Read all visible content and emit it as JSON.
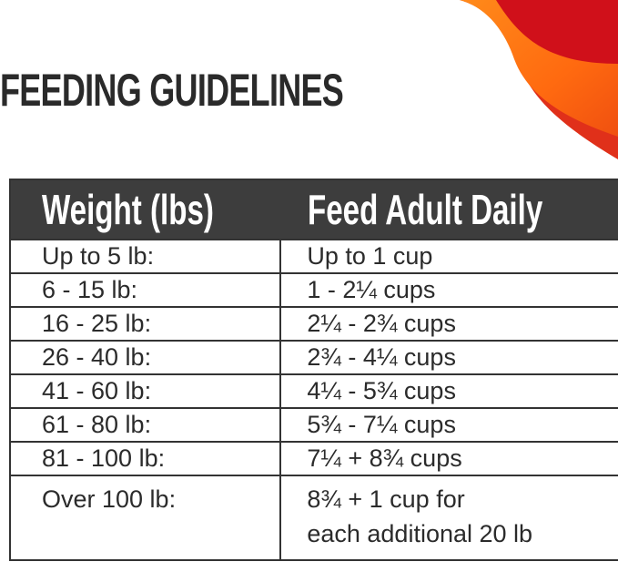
{
  "title": "FEEDING GUIDELINES",
  "colors": {
    "header_bg": "#3d3d3d",
    "swoosh_red": "#d0101a",
    "swoosh_orange": "#ff6a10"
  },
  "table": {
    "headers": [
      "Weight (lbs)",
      "Feed Adult Daily"
    ],
    "rows": [
      {
        "weight": "Up to 5 lb:",
        "amount": "Up to 1 cup"
      },
      {
        "weight": "6 - 15 lb:",
        "amount": "1 - 2¼ cups"
      },
      {
        "weight": "16 - 25 lb:",
        "amount": "2¼ - 2¾ cups"
      },
      {
        "weight": "26 - 40 lb:",
        "amount": "2¾ - 4¼ cups"
      },
      {
        "weight": "41 - 60 lb:",
        "amount": "4¼ - 5¾ cups"
      },
      {
        "weight": "61 - 80 lb:",
        "amount": "5¾ - 7¼ cups"
      },
      {
        "weight": "81 - 100 lb:",
        "amount": "7¼ + 8¾ cups"
      },
      {
        "weight": "Over 100 lb:",
        "amount": "8¾ + 1 cup for",
        "amount_line2": "each additional 20 lb"
      }
    ]
  }
}
